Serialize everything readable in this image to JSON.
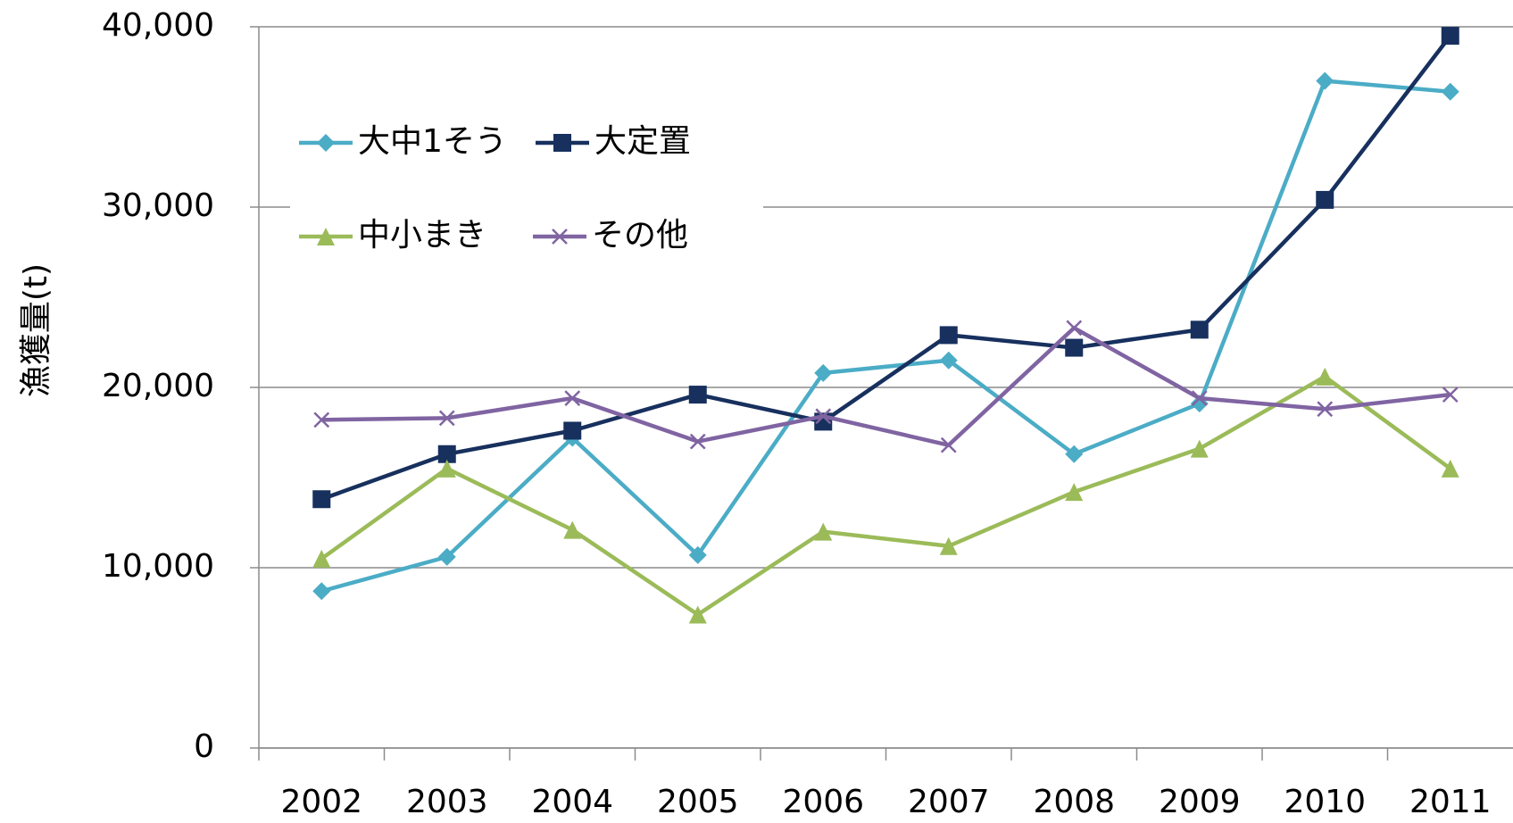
{
  "chart_data": {
    "type": "line",
    "y_label": "漁獲量(t)",
    "categories": [
      "2002",
      "2003",
      "2004",
      "2005",
      "2006",
      "2007",
      "2008",
      "2009",
      "2010",
      "2011"
    ],
    "series": [
      {
        "name": "大中1そう",
        "color": "#4bacc6",
        "marker": "diamond",
        "values": [
          8700,
          10600,
          17200,
          10700,
          20800,
          21500,
          16300,
          19100,
          37000,
          36400
        ]
      },
      {
        "name": "大定置",
        "color": "#17305e",
        "marker": "square",
        "values": [
          13800,
          16300,
          17600,
          19600,
          18100,
          22900,
          22200,
          23200,
          30400,
          39500
        ]
      },
      {
        "name": "中小まき",
        "color": "#9bbb59",
        "marker": "triangle",
        "values": [
          10500,
          15500,
          12100,
          7400,
          12000,
          11200,
          14200,
          16600,
          20600,
          15500
        ]
      },
      {
        "name": "その他",
        "color": "#8064a2",
        "marker": "x",
        "values": [
          18200,
          18300,
          19400,
          17000,
          18400,
          16800,
          23300,
          19400,
          18800,
          19600
        ]
      }
    ],
    "ylim": [
      0,
      40000
    ],
    "yticks": [
      0,
      {
        "value": 10000,
        "label": "10,000"
      },
      {
        "value": 20000,
        "label": "20,000"
      },
      {
        "value": 30000,
        "label": "30,000"
      },
      {
        "value": 40000,
        "label": "40,000"
      }
    ],
    "grid": true,
    "legend": "top-left"
  }
}
